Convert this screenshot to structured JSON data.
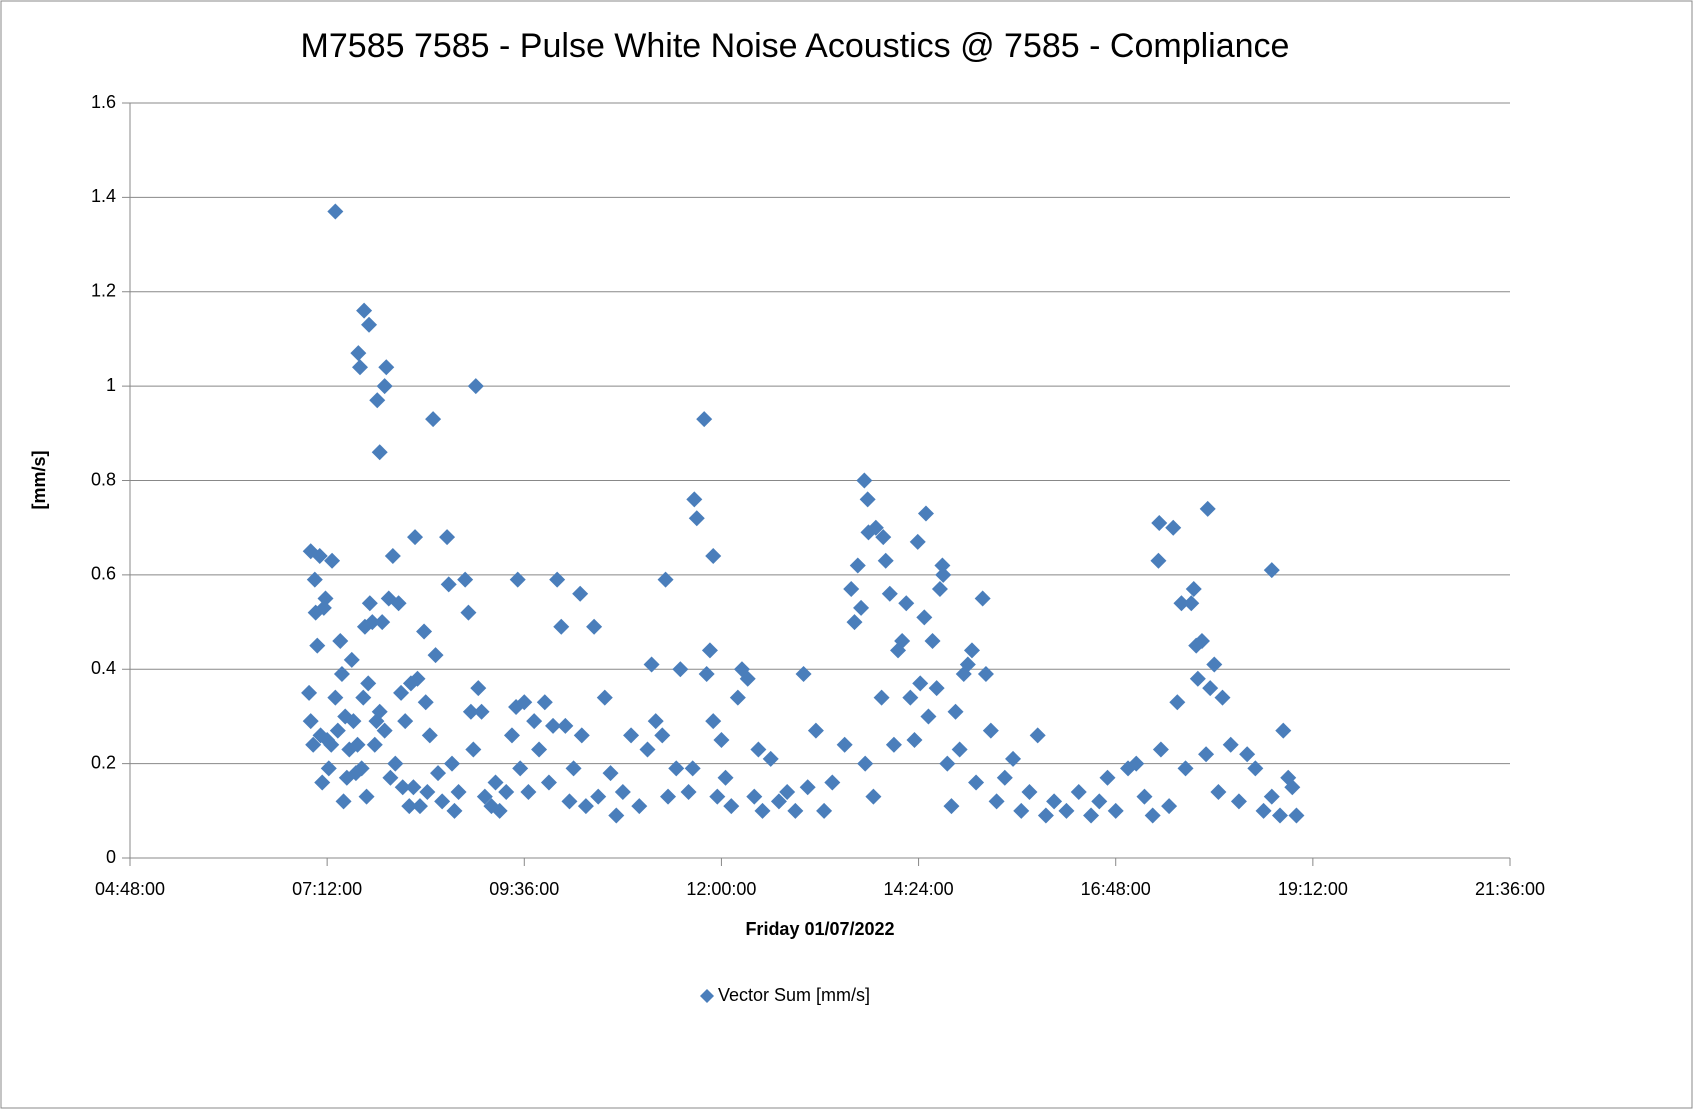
{
  "chart_data": {
    "type": "scatter",
    "title": "M7585 7585 - Pulse White Noise Acoustics @ 7585 - Compliance",
    "x_label": "Friday 01/07/2022",
    "y_label": "[mm/s]",
    "xlim": [
      4.8,
      21.6
    ],
    "xticks": [
      {
        "value": 4.8,
        "label": "04:48:00"
      },
      {
        "value": 7.2,
        "label": "07:12:00"
      },
      {
        "value": 9.6,
        "label": "09:36:00"
      },
      {
        "value": 12,
        "label": "12:00:00"
      },
      {
        "value": 14.4,
        "label": "14:24:00"
      },
      {
        "value": 16.8,
        "label": "16:48:00"
      },
      {
        "value": 19.2,
        "label": "19:12:00"
      },
      {
        "value": 21.6,
        "label": "21:36:00"
      }
    ],
    "ylim": [
      0,
      1.6
    ],
    "yticks": [
      0,
      0.2,
      0.4,
      0.6,
      0.8,
      1,
      1.2,
      1.4,
      1.6
    ],
    "grid": true,
    "legend": "bottom",
    "x": [
      7.3,
      7.65,
      7.71,
      7.58,
      7.6,
      7.92,
      7.9,
      7.81,
      7.84,
      9.01,
      8.49,
      11.79,
      11.67,
      11.7,
      11.9,
      13.74,
      13.78,
      13.79,
      13.88,
      13.97,
      14.49,
      14.39,
      17.33,
      17.5,
      17.92,
      17.32,
      18.7,
      7.0,
      7.11,
      7.26,
      8.27,
      8.66,
      9.52,
      10.0,
      10.28,
      11.32,
      13.66,
      14.69,
      18.84,
      6.98,
      7.0,
      7.03,
      7.05,
      7.06,
      7.08,
      7.12,
      7.14,
      7.16,
      7.18,
      7.2,
      7.22,
      7.25,
      7.3,
      7.33,
      7.36,
      7.38,
      7.4,
      7.42,
      7.44,
      7.47,
      7.5,
      7.52,
      7.55,
      7.57,
      7.62,
      7.64,
      7.66,
      7.68,
      7.7,
      7.72,
      7.75,
      7.78,
      7.8,
      7.84,
      7.87,
      7.9,
      7.95,
      7.97,
      8.0,
      8.03,
      8.07,
      8.1,
      8.12,
      8.15,
      8.2,
      8.22,
      8.25,
      8.3,
      8.33,
      8.38,
      8.4,
      8.42,
      8.45,
      8.52,
      8.55,
      8.6,
      8.68,
      8.72,
      8.75,
      8.8,
      8.88,
      8.92,
      8.95,
      8.98,
      9.04,
      9.08,
      9.12,
      9.2,
      9.25,
      9.3,
      9.38,
      9.45,
      9.5,
      9.55,
      9.6,
      9.65,
      9.72,
      9.78,
      9.85,
      9.9,
      9.95,
      10.05,
      10.1,
      10.15,
      10.2,
      10.3,
      10.35,
      10.45,
      10.5,
      10.58,
      10.65,
      10.72,
      10.8,
      10.9,
      11.0,
      11.1,
      11.15,
      11.2,
      11.28,
      11.35,
      11.45,
      11.5,
      11.6,
      11.65,
      11.82,
      11.86,
      11.9,
      11.95,
      12.0,
      12.05,
      12.12,
      12.2,
      12.25,
      12.32,
      12.4,
      12.45,
      12.5,
      12.6,
      12.7,
      12.8,
      12.9,
      13.0,
      13.05,
      13.15,
      13.25,
      13.35,
      13.5,
      13.58,
      13.62,
      13.7,
      13.75,
      13.85,
      13.95,
      14.0,
      14.05,
      14.1,
      14.15,
      14.2,
      14.25,
      14.3,
      14.35,
      14.42,
      14.47,
      14.52,
      14.57,
      14.62,
      14.66,
      14.7,
      14.75,
      14.8,
      14.85,
      14.9,
      14.95,
      15.0,
      15.05,
      15.1,
      15.18,
      15.22,
      15.28,
      15.35,
      15.45,
      15.55,
      15.65,
      15.75,
      15.85,
      15.95,
      16.05,
      16.2,
      16.35,
      16.5,
      16.6,
      16.7,
      16.8,
      16.95,
      17.05,
      17.15,
      17.25,
      17.35,
      17.45,
      17.55,
      17.6,
      17.65,
      17.72,
      17.75,
      17.78,
      17.8,
      17.85,
      17.9,
      17.95,
      18.0,
      18.05,
      18.1,
      18.2,
      18.3,
      18.4,
      18.5,
      18.6,
      18.7,
      18.8,
      18.9,
      18.95,
      19.0
    ],
    "series": [
      {
        "name": "Vector Sum [mm/s]",
        "color": "#4a7ebb",
        "values": [
          1.37,
          1.16,
          1.13,
          1.07,
          1.04,
          1.04,
          1.0,
          0.97,
          0.86,
          1.0,
          0.93,
          0.93,
          0.76,
          0.72,
          0.64,
          0.8,
          0.76,
          0.69,
          0.7,
          0.68,
          0.73,
          0.67,
          0.71,
          0.7,
          0.74,
          0.63,
          0.61,
          0.65,
          0.64,
          0.63,
          0.68,
          0.68,
          0.59,
          0.59,
          0.56,
          0.59,
          0.62,
          0.62,
          0.27,
          0.35,
          0.29,
          0.24,
          0.59,
          0.52,
          0.45,
          0.26,
          0.16,
          0.53,
          0.55,
          0.25,
          0.19,
          0.24,
          0.34,
          0.27,
          0.46,
          0.39,
          0.12,
          0.3,
          0.17,
          0.23,
          0.42,
          0.29,
          0.18,
          0.24,
          0.19,
          0.34,
          0.49,
          0.13,
          0.37,
          0.54,
          0.5,
          0.24,
          0.29,
          0.31,
          0.5,
          0.27,
          0.55,
          0.17,
          0.64,
          0.2,
          0.54,
          0.35,
          0.15,
          0.29,
          0.11,
          0.37,
          0.15,
          0.38,
          0.11,
          0.48,
          0.33,
          0.14,
          0.26,
          0.43,
          0.18,
          0.12,
          0.58,
          0.2,
          0.1,
          0.14,
          0.59,
          0.52,
          0.31,
          0.23,
          0.36,
          0.31,
          0.13,
          0.11,
          0.16,
          0.1,
          0.14,
          0.26,
          0.32,
          0.19,
          0.33,
          0.14,
          0.29,
          0.23,
          0.33,
          0.16,
          0.28,
          0.49,
          0.28,
          0.12,
          0.19,
          0.26,
          0.11,
          0.49,
          0.13,
          0.34,
          0.18,
          0.09,
          0.14,
          0.26,
          0.11,
          0.23,
          0.41,
          0.29,
          0.26,
          0.13,
          0.19,
          0.4,
          0.14,
          0.19,
          0.39,
          0.44,
          0.29,
          0.13,
          0.25,
          0.17,
          0.11,
          0.34,
          0.4,
          0.38,
          0.13,
          0.23,
          0.1,
          0.21,
          0.12,
          0.14,
          0.1,
          0.39,
          0.15,
          0.27,
          0.1,
          0.16,
          0.24,
          0.57,
          0.5,
          0.53,
          0.2,
          0.13,
          0.34,
          0.63,
          0.56,
          0.24,
          0.44,
          0.46,
          0.54,
          0.34,
          0.25,
          0.37,
          0.51,
          0.3,
          0.46,
          0.36,
          0.57,
          0.6,
          0.2,
          0.11,
          0.31,
          0.23,
          0.39,
          0.41,
          0.44,
          0.16,
          0.55,
          0.39,
          0.27,
          0.12,
          0.17,
          0.21,
          0.1,
          0.14,
          0.26,
          0.09,
          0.12,
          0.1,
          0.14,
          0.09,
          0.12,
          0.17,
          0.1,
          0.19,
          0.2,
          0.13,
          0.09,
          0.23,
          0.11,
          0.33,
          0.54,
          0.19,
          0.54,
          0.57,
          0.45,
          0.38,
          0.46,
          0.22,
          0.36,
          0.41,
          0.14,
          0.34,
          0.24,
          0.12,
          0.22,
          0.19,
          0.1,
          0.13,
          0.09,
          0.17,
          0.15,
          0.09
        ]
      }
    ]
  }
}
